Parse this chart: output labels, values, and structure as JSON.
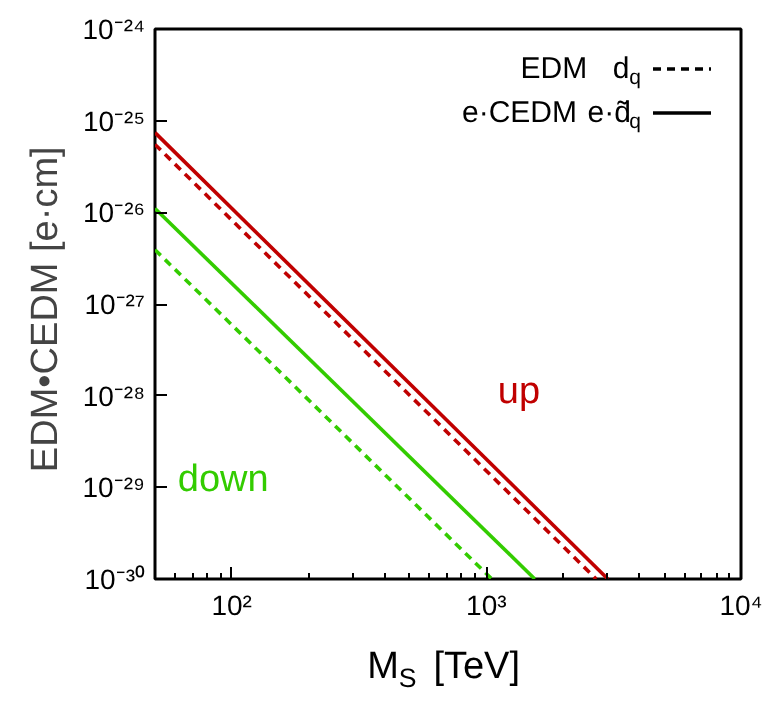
{
  "chart_data": {
    "type": "line",
    "xlabel": "M$_{S}$ [TeV]",
    "ylabel": "EDM•CEDM  [e·cm]",
    "log": "xy",
    "grid": false,
    "xlim": [
      50,
      10000
    ],
    "ylim": [
      1e-30,
      1e-24
    ],
    "xticks": [
      {
        "value": 100,
        "label": "10²"
      },
      {
        "value": 1000,
        "label": "10³"
      },
      {
        "value": 10000,
        "label": "10⁴"
      }
    ],
    "yticks": [
      {
        "value": 1e-30,
        "label": "10⁻³⁰"
      },
      {
        "value": 1e-29,
        "label": "10⁻²⁹"
      },
      {
        "value": 1e-28,
        "label": "10⁻²⁸"
      },
      {
        "value": 1e-27,
        "label": "10⁻²⁷"
      },
      {
        "value": 1e-26,
        "label": "10⁻²⁶"
      },
      {
        "value": 1e-25,
        "label": "10⁻²⁵"
      },
      {
        "value": 1e-24,
        "label": "10⁻²⁴"
      }
    ],
    "series": [
      {
        "color": "#c00000",
        "line_style": "dashed",
        "x": [
          50,
          2700
        ],
        "values": [
          5.5e-26,
          1e-30
        ]
      },
      {
        "name": "up",
        "color": "#c00000",
        "line_style": "solid",
        "x": [
          50,
          3000
        ],
        "values": [
          7.4e-26,
          1e-30
        ]
      },
      {
        "color": "#33cc00",
        "line_style": "dashed",
        "x": [
          50,
          1050
        ],
        "values": [
          3.9e-27,
          1e-30
        ]
      },
      {
        "name": "down",
        "color": "#33cc00",
        "line_style": "solid",
        "x": [
          50,
          1550
        ],
        "values": [
          1.1e-26,
          1e-30
        ]
      }
    ],
    "annotations": [
      "EDM  d$_{q}$",
      "e·CEDM e·d̃$_{q}$"
    ]
  }
}
